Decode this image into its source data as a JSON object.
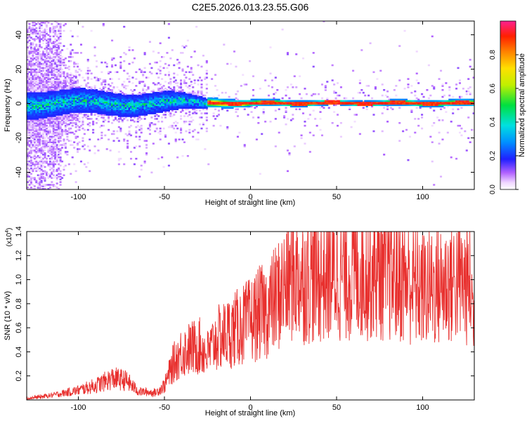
{
  "title": "C2E5.2026.013.23.55.G06",
  "colors": {
    "signal": "#e8302e",
    "axes": "#000000",
    "background": "#ffffff"
  },
  "chart_data": [
    {
      "type": "heatmap",
      "xlabel": "Height of straight line (km)",
      "ylabel": "Frequency (Hz)",
      "xlim": [
        -130,
        130
      ],
      "ylim": [
        -50,
        48
      ],
      "xticks": [
        -100,
        -50,
        0,
        50,
        100
      ],
      "yticks": [
        -40,
        -20,
        0,
        20,
        40
      ],
      "ytick_labels": [
        "-40",
        "-20",
        "0",
        "20",
        "40"
      ],
      "xtick_labels": [
        "-100",
        "-50",
        "0",
        "50",
        "100"
      ],
      "colorbar": {
        "label": "Normalized spectral amplitude",
        "range": [
          0,
          1
        ],
        "ticks": [
          0.0,
          0.2,
          0.4,
          0.6,
          0.8
        ],
        "tick_labels": [
          "0.0",
          "0.2",
          "0.4",
          "0.6",
          "0.8"
        ]
      },
      "ridge_band_halfwidth_hz": [
        {
          "height_km": -130,
          "halfwidth": 8
        },
        {
          "height_km": -100,
          "halfwidth": 7
        },
        {
          "height_km": -50,
          "halfwidth": 6
        },
        {
          "height_km": -25,
          "halfwidth": 3
        },
        {
          "height_km": 0,
          "halfwidth": 2
        },
        {
          "height_km": 50,
          "halfwidth": 1.5
        },
        {
          "height_km": 130,
          "halfwidth": 2
        }
      ]
    },
    {
      "type": "line",
      "xlabel": "Height of straight line (km)",
      "ylabel": "SNR (10 * v/v)",
      "y_multiplier_label": "(x10",
      "y_multiplier_exp": "4",
      "xlim": [
        -130,
        130
      ],
      "ylim": [
        0,
        1.4
      ],
      "xticks": [
        -100,
        -50,
        0,
        50,
        100
      ],
      "xtick_labels": [
        "-100",
        "-50",
        "0",
        "50",
        "100"
      ],
      "yticks": [
        0.2,
        0.4,
        0.6,
        0.8,
        1.0,
        1.2,
        1.4
      ],
      "ytick_labels": [
        "0.2",
        "0.4",
        "0.6",
        "0.8",
        "1.0",
        "1.2",
        "1.4"
      ],
      "series": [
        {
          "name": "SNR",
          "envelope": {
            "x": [
              -130,
              -115,
              -100,
              -90,
              -80,
              -72,
              -65,
              -55,
              -50,
              -45,
              -40,
              -30,
              -25,
              -20,
              -10,
              -5,
              0,
              5,
              10,
              15,
              20,
              25,
              30,
              40,
              50,
              60,
              70,
              80,
              90,
              100,
              110,
              120,
              128,
              130
            ],
            "y": [
              0.01,
              0.04,
              0.08,
              0.12,
              0.18,
              0.16,
              0.07,
              0.06,
              0.12,
              0.3,
              0.4,
              0.45,
              0.38,
              0.5,
              0.58,
              0.62,
              0.66,
              0.72,
              0.75,
              0.85,
              0.95,
              1.05,
              1.0,
              1.02,
              1.05,
              1.05,
              1.08,
              1.05,
              1.0,
              0.92,
              0.95,
              1.0,
              0.95,
              0.6
            ]
          }
        }
      ]
    }
  ]
}
